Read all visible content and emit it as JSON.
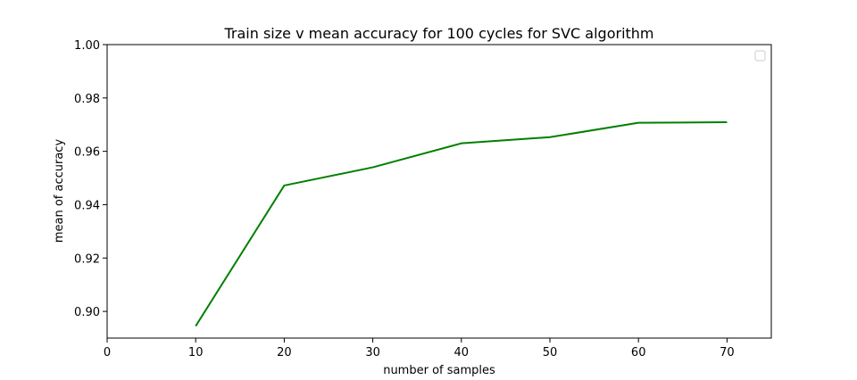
{
  "chart_data": {
    "type": "line",
    "title": "Train size v mean accuracy for 100 cycles for SVC algorithm",
    "xlabel": "number of samples",
    "ylabel": "mean of accuracy",
    "xlim": [
      0,
      75
    ],
    "ylim": [
      0.89,
      1.0
    ],
    "x_ticks": [
      0,
      10,
      20,
      30,
      40,
      50,
      60,
      70
    ],
    "y_ticks": [
      0.9,
      0.92,
      0.94,
      0.96,
      0.98,
      1.0
    ],
    "x_tick_labels": [
      "0",
      "10",
      "20",
      "30",
      "40",
      "50",
      "60",
      "70"
    ],
    "y_tick_labels": [
      "0.90",
      "0.92",
      "0.94",
      "0.96",
      "0.98",
      "1.00"
    ],
    "grid": false,
    "legend": {
      "placement": "top-right",
      "entries": []
    },
    "series": [
      {
        "color": "#008000",
        "x": [
          10,
          20,
          30,
          40,
          50,
          60,
          70
        ],
        "y": [
          0.8945,
          0.9472,
          0.954,
          0.963,
          0.9653,
          0.9707,
          0.9709
        ]
      }
    ]
  }
}
